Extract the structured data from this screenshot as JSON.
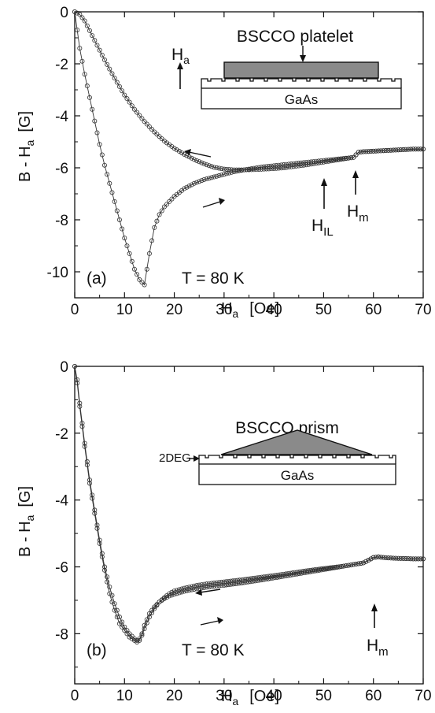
{
  "chart_data": [
    {
      "type": "scatter",
      "panel_label": "(a)",
      "annotation": "T = 80 K",
      "xlabel_main": "H",
      "xlabel_sub": "a",
      "xlabel_unit": "[Oe]",
      "ylabel_main": "B - H",
      "ylabel_sub": "a",
      "ylabel_unit": "[G]",
      "xlim": [
        0,
        70
      ],
      "ylim": [
        -11,
        0
      ],
      "xticks": [
        "0",
        "10",
        "20",
        "30",
        "40",
        "50",
        "60",
        "70"
      ],
      "yticks": [
        "0",
        "-2",
        "-4",
        "-6",
        "-8",
        "-10"
      ],
      "series": [
        {
          "direction": "increasing field",
          "x": [
            0,
            1,
            2,
            3,
            4,
            5,
            6,
            7,
            8,
            9,
            10,
            11,
            12,
            13,
            14,
            15,
            16,
            17,
            18,
            19,
            20,
            22,
            24,
            26,
            28,
            30,
            32,
            34,
            36,
            38,
            40,
            42,
            44,
            46,
            48,
            50,
            52,
            54,
            56,
            56.5,
            57,
            58,
            60,
            62,
            64,
            66,
            68,
            70
          ],
          "y": [
            0,
            -1.4,
            -2.4,
            -3.3,
            -4.2,
            -5.1,
            -5.9,
            -6.6,
            -7.3,
            -8.0,
            -8.7,
            -9.3,
            -9.9,
            -10.3,
            -10.5,
            -9.3,
            -8.3,
            -7.8,
            -7.5,
            -7.3,
            -7.1,
            -6.8,
            -6.6,
            -6.45,
            -6.35,
            -6.25,
            -6.15,
            -6.08,
            -6.02,
            -5.96,
            -5.92,
            -5.88,
            -5.84,
            -5.8,
            -5.76,
            -5.72,
            -5.68,
            -5.64,
            -5.6,
            -5.5,
            -5.4,
            -5.38,
            -5.36,
            -5.34,
            -5.32,
            -5.3,
            -5.28,
            -5.28
          ]
        },
        {
          "direction": "decreasing field",
          "x": [
            70,
            68,
            66,
            64,
            62,
            60,
            58,
            57,
            56.5,
            56,
            54,
            52,
            50,
            48,
            46,
            44,
            42,
            40,
            38,
            36,
            34,
            32,
            30,
            28,
            26,
            24,
            22,
            20,
            18,
            16,
            14,
            12,
            10,
            8,
            6,
            4,
            2,
            1,
            0
          ],
          "y": [
            -5.28,
            -5.28,
            -5.3,
            -5.32,
            -5.34,
            -5.36,
            -5.38,
            -5.4,
            -5.5,
            -5.6,
            -5.66,
            -5.72,
            -5.78,
            -5.84,
            -5.9,
            -5.95,
            -6.0,
            -6.03,
            -6.05,
            -6.07,
            -6.08,
            -6.08,
            -6.05,
            -5.98,
            -5.85,
            -5.68,
            -5.48,
            -5.25,
            -4.97,
            -4.62,
            -4.22,
            -3.75,
            -3.2,
            -2.55,
            -1.85,
            -1.1,
            -0.35,
            -0.1,
            0
          ]
        }
      ],
      "labels": {
        "hil_main": "H",
        "hil_sub": "IL",
        "hm_main": "H",
        "hm_sub": "m",
        "ha_main": "H",
        "ha_sub": "a",
        "sample": "BSCCO platelet",
        "substrate": "GaAs"
      }
    },
    {
      "type": "scatter",
      "panel_label": "(b)",
      "annotation": "T = 80 K",
      "xlabel_main": "H",
      "xlabel_sub": "a",
      "xlabel_unit": "[Oe]",
      "ylabel_main": "B - H",
      "ylabel_sub": "a",
      "ylabel_unit": "[G]",
      "xlim": [
        0,
        70
      ],
      "ylim": [
        -9.5,
        0
      ],
      "xticks": [
        "0",
        "10",
        "20",
        "30",
        "40",
        "50",
        "60",
        "70"
      ],
      "yticks": [
        "0",
        "-2",
        "-4",
        "-6",
        "-8"
      ],
      "series": [
        {
          "direction": "increasing field",
          "x": [
            0,
            0.5,
            1,
            1.5,
            2,
            3,
            4,
            5,
            6,
            7,
            8,
            9,
            10,
            11,
            12,
            12.5,
            13,
            13.5,
            14,
            15,
            16,
            17,
            18,
            19,
            20,
            22,
            24,
            26,
            28,
            30,
            34,
            38,
            42,
            46,
            50,
            54,
            56,
            58,
            59,
            60,
            61,
            62,
            64,
            66,
            68,
            70
          ],
          "y": [
            0,
            -0.5,
            -1.2,
            -1.8,
            -2.4,
            -3.5,
            -4.4,
            -5.3,
            -6.1,
            -6.8,
            -7.3,
            -7.7,
            -7.9,
            -8.1,
            -8.2,
            -8.25,
            -8.2,
            -8.0,
            -7.75,
            -7.4,
            -7.2,
            -7.05,
            -6.95,
            -6.87,
            -6.82,
            -6.73,
            -6.67,
            -6.62,
            -6.58,
            -6.55,
            -6.47,
            -6.38,
            -6.28,
            -6.18,
            -6.08,
            -5.98,
            -5.93,
            -5.88,
            -5.8,
            -5.72,
            -5.7,
            -5.72,
            -5.74,
            -5.75,
            -5.76,
            -5.76
          ]
        },
        {
          "direction": "decreasing field",
          "x": [
            70,
            68,
            66,
            64,
            62,
            61,
            60,
            59,
            58,
            56,
            54,
            50,
            46,
            42,
            38,
            34,
            30,
            28,
            26,
            24,
            22,
            20,
            19,
            18,
            17,
            16,
            15,
            14,
            13.5,
            13,
            12.5,
            12,
            11,
            10,
            9,
            8,
            7,
            6,
            5,
            4,
            3,
            2,
            1.5,
            1,
            0.5,
            0
          ],
          "y": [
            -5.76,
            -5.76,
            -5.75,
            -5.74,
            -5.72,
            -5.7,
            -5.72,
            -5.8,
            -5.88,
            -5.93,
            -5.98,
            -6.05,
            -6.13,
            -6.22,
            -6.3,
            -6.38,
            -6.45,
            -6.48,
            -6.52,
            -6.57,
            -6.64,
            -6.72,
            -6.8,
            -6.92,
            -7.05,
            -7.25,
            -7.5,
            -7.85,
            -8.05,
            -8.15,
            -8.2,
            -8.15,
            -8.0,
            -7.8,
            -7.5,
            -7.1,
            -6.6,
            -6.0,
            -5.2,
            -4.3,
            -3.4,
            -2.3,
            -1.7,
            -1.1,
            -0.4,
            0
          ]
        }
      ],
      "labels": {
        "hm_main": "H",
        "hm_sub": "m",
        "deg": "2DEG",
        "sample": "BSCCO prism",
        "substrate": "GaAs"
      }
    }
  ]
}
